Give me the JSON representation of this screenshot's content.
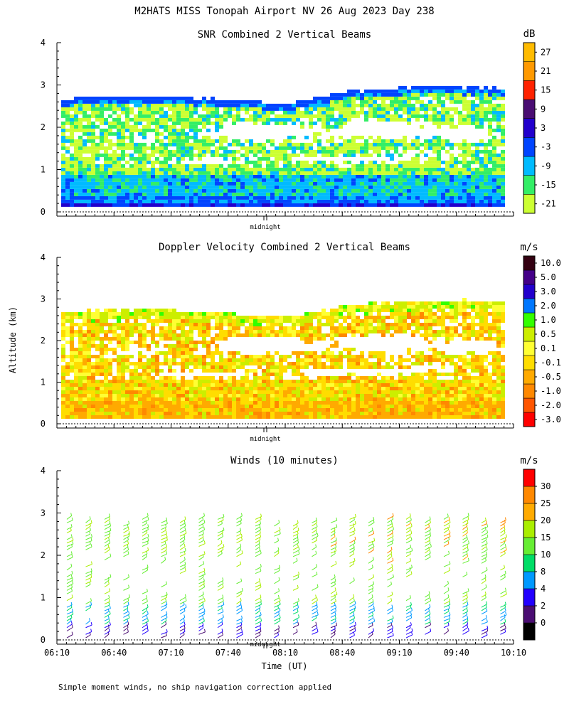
{
  "figure": {
    "title": "M2HATS MISS Tonopah Airport NV  26 Aug 2023 Day 238",
    "ylabel": "Altitude (km)",
    "xlabel": "Time (UT)",
    "midnight_label": "midnight",
    "footnote": "Simple moment winds, no ship navigation correction applied"
  },
  "chart_data": [
    {
      "type": "heatmap",
      "title": "SNR Combined 2 Vertical Beams",
      "ylim": [
        0,
        4
      ],
      "yticks": [
        "0",
        "1",
        "2",
        "3",
        "4"
      ],
      "colorbar": {
        "unit": "dB",
        "levels": [
          "-21",
          "-15",
          "-9",
          "-3",
          "3",
          "9",
          "15",
          "21",
          "27"
        ],
        "colors": [
          "#ccff33",
          "#33ee66",
          "#00bbff",
          "#0044ff",
          "#2200cc",
          "#4a0d72",
          "#ff2200",
          "#ff9900",
          "#ffbb00"
        ]
      }
    },
    {
      "type": "heatmap",
      "title": "Doppler Velocity Combined 2 Vertical Beams",
      "ylim": [
        0,
        4
      ],
      "yticks": [
        "0",
        "1",
        "2",
        "3",
        "4"
      ],
      "colorbar": {
        "unit": "m/s",
        "levels": [
          "-3.0",
          "-2.0",
          "-1.0",
          "-0.5",
          "-0.1",
          "0.1",
          "0.5",
          "1.0",
          "2.0",
          "3.0",
          "5.0",
          "10.0"
        ],
        "colors": [
          "#ff0000",
          "#ff5500",
          "#ff8800",
          "#ffaa00",
          "#ffdd00",
          "#ffff33",
          "#ccee00",
          "#33ff00",
          "#0077ff",
          "#2200cc",
          "#440088",
          "#330011"
        ]
      }
    },
    {
      "type": "barbs",
      "title": "Winds (10 minutes)",
      "ylim": [
        0,
        4
      ],
      "yticks": [
        "0",
        "1",
        "2",
        "3",
        "4"
      ],
      "x": [
        "06:10",
        "06:40",
        "07:10",
        "07:40",
        "08:10",
        "08:40",
        "09:10",
        "09:40",
        "10:10"
      ],
      "colorbar": {
        "unit": "m/s",
        "levels": [
          "0",
          "2",
          "4",
          "8",
          "10",
          "15",
          "20",
          "25",
          "30"
        ],
        "colors": [
          "#000000",
          "#4a0d72",
          "#2200ff",
          "#0099ff",
          "#00dd66",
          "#66ee33",
          "#aaee00",
          "#ffaa00",
          "#ff8800",
          "#ff0000"
        ]
      }
    }
  ]
}
